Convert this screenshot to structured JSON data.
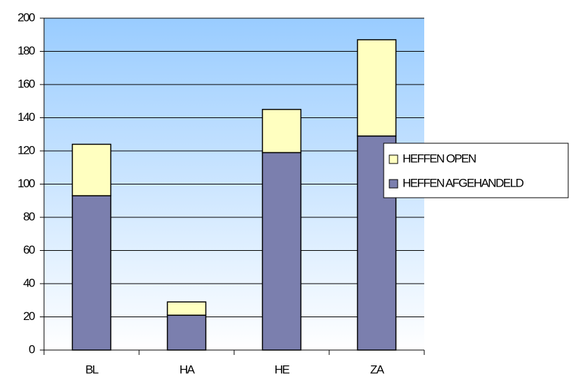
{
  "chart_data": {
    "type": "bar",
    "stacked": true,
    "categories": [
      "BL",
      "HA",
      "HE",
      "ZA"
    ],
    "series": [
      {
        "name": "HEFFEN AFGEHANDELD",
        "color": "#7b7fae",
        "values": [
          93,
          21,
          119,
          129
        ]
      },
      {
        "name": "HEFFEN OPEN",
        "color": "#ffffc0",
        "values": [
          31,
          8,
          26,
          58
        ]
      }
    ],
    "ylim": [
      0,
      200
    ],
    "yticks": [
      0,
      20,
      40,
      60,
      80,
      100,
      120,
      140,
      160,
      180,
      200
    ],
    "grid": true,
    "legend": "right"
  }
}
